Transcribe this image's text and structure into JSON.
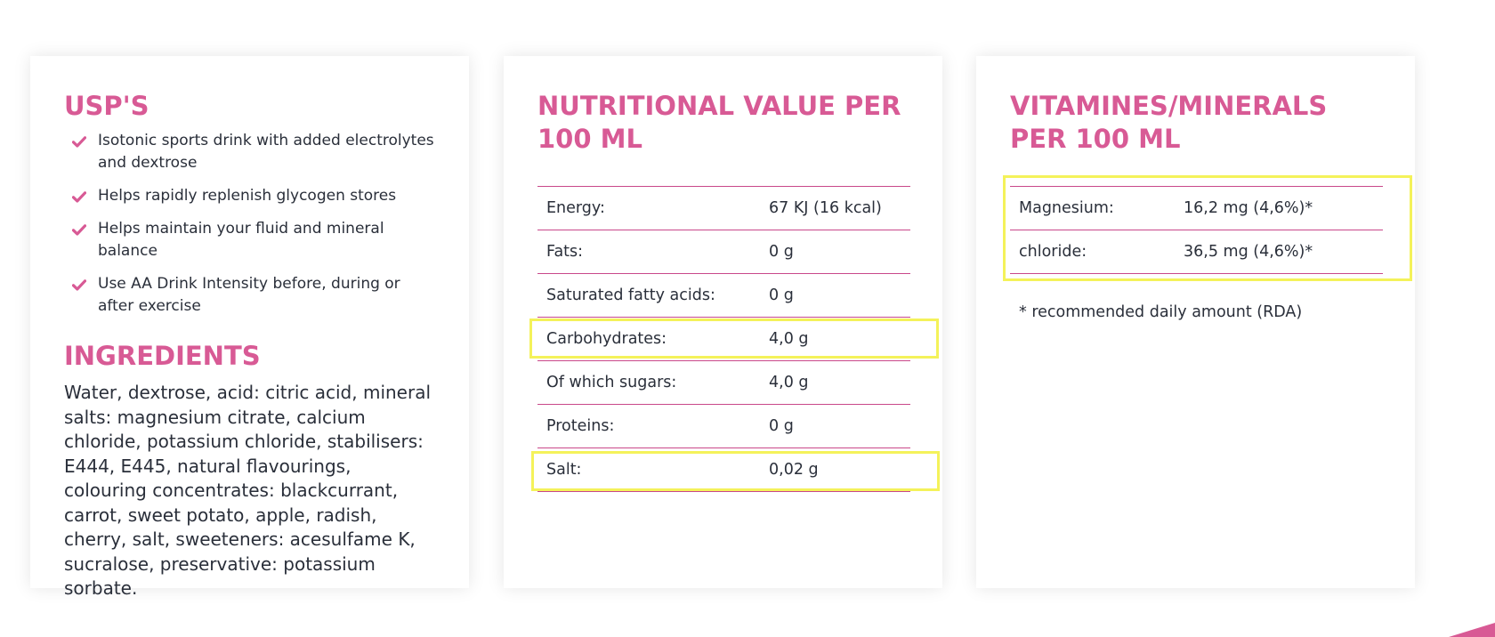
{
  "usps": {
    "title": "USP'S",
    "items": [
      "Isotonic sports drink with added electrolytes and dextrose",
      "Helps rapidly replenish glycogen stores",
      "Helps maintain your fluid and mineral balance",
      "Use AA Drink Intensity before, during or after exercise"
    ],
    "icon": "check-icon"
  },
  "ingredients": {
    "title": "INGREDIENTS",
    "text": "Water, dextrose, acid: citric acid, mineral salts: magnesium citrate, calcium chloride, potassium chloride, stabilisers: E444, E445, natural flavourings, colouring concentrates: blackcurrant, carrot, sweet potato, apple, radish, cherry, salt, sweeteners: acesulfame K, sucralose, preservative: potassium sorbate."
  },
  "nutrition": {
    "title": "NUTRITIONAL VALUE PER 100 ML",
    "rows": [
      {
        "label": "Energy:",
        "value": "67 KJ (16 kcal)"
      },
      {
        "label": "Fats:",
        "value": "0 g"
      },
      {
        "label": "Saturated fatty acids:",
        "value": "0 g"
      },
      {
        "label": "Carbohydrates:",
        "value": "4,0 g"
      },
      {
        "label": "Of which sugars:",
        "value": "4,0 g"
      },
      {
        "label": "Proteins:",
        "value": "0 g"
      },
      {
        "label": "Salt:",
        "value": "0,02 g"
      }
    ]
  },
  "vitamins": {
    "title": "VITAMINES/MINERALS PER 100 ML",
    "rows": [
      {
        "label": "Magnesium:",
        "value": "16,2 mg (4,6%)*"
      },
      {
        "label": "chloride:",
        "value": "36,5 mg (4,6%)*"
      }
    ],
    "note": "* recommended daily amount (RDA)"
  },
  "colors": {
    "accent": "#d85a95",
    "divider": "#c9488a",
    "highlight": "#f4f25a",
    "text": "#2a2f3a"
  }
}
